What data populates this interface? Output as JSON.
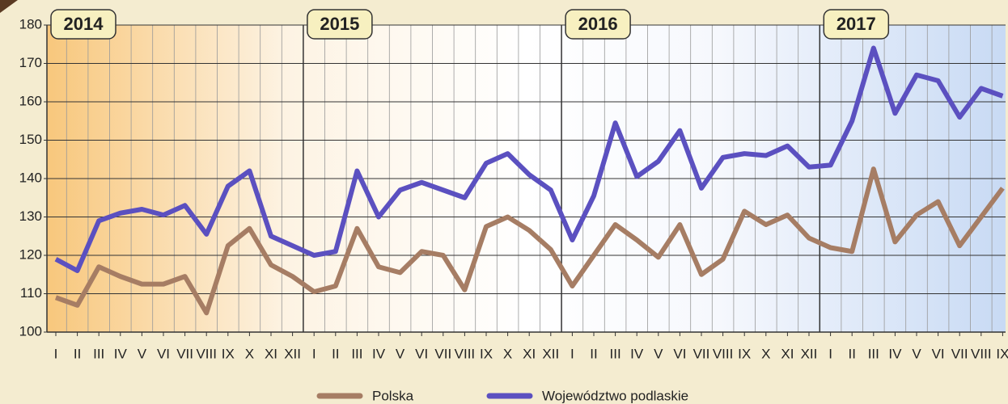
{
  "chart_data": {
    "type": "line",
    "categories": [
      "I",
      "II",
      "III",
      "IV",
      "V",
      "VI",
      "VII",
      "VIII",
      "IX",
      "X",
      "XI",
      "XII",
      "I",
      "II",
      "III",
      "IV",
      "V",
      "VI",
      "VII",
      "VIII",
      "IX",
      "X",
      "XI",
      "XII",
      "I",
      "II",
      "III",
      "IV",
      "V",
      "VI",
      "VII",
      "VIII",
      "IX",
      "X",
      "XI",
      "XII",
      "I",
      "II",
      "III",
      "IV",
      "V",
      "VI",
      "VII",
      "VIII",
      "IX"
    ],
    "annotations": [
      "2014",
      "2015",
      "2016",
      "2017"
    ],
    "series": [
      {
        "name": "Polska",
        "color": "#a67d64",
        "values": [
          109,
          107,
          117,
          114.5,
          112.5,
          112.5,
          114.5,
          105,
          122.5,
          127,
          117.5,
          114.5,
          110.5,
          112,
          127,
          117,
          115.5,
          121,
          120,
          111,
          127.5,
          130,
          126.5,
          121.5,
          112,
          120,
          128,
          124,
          119.5,
          128,
          115,
          119,
          131.5,
          128,
          130.5,
          124.5,
          122,
          121,
          142.5,
          123.5,
          130.5,
          134,
          122.5,
          130,
          137.5
        ]
      },
      {
        "name": "Województwo podlaskie",
        "color": "#5b50c0",
        "values": [
          119,
          116,
          129,
          131,
          132,
          130.5,
          133,
          125.5,
          138,
          142,
          125,
          122.5,
          120,
          121,
          142,
          130,
          137,
          139,
          137,
          135,
          144,
          146.5,
          141,
          137,
          124,
          135.5,
          154.5,
          140.5,
          144.5,
          152.5,
          137.5,
          145.5,
          146.5,
          146,
          148.5,
          143,
          143.5,
          155,
          174,
          157,
          167,
          165.5,
          156,
          163.5,
          161.5
        ]
      }
    ],
    "ylim": [
      100,
      180
    ],
    "yticks": [
      100,
      110,
      120,
      130,
      140,
      150,
      160,
      170,
      180
    ],
    "grid": true
  }
}
